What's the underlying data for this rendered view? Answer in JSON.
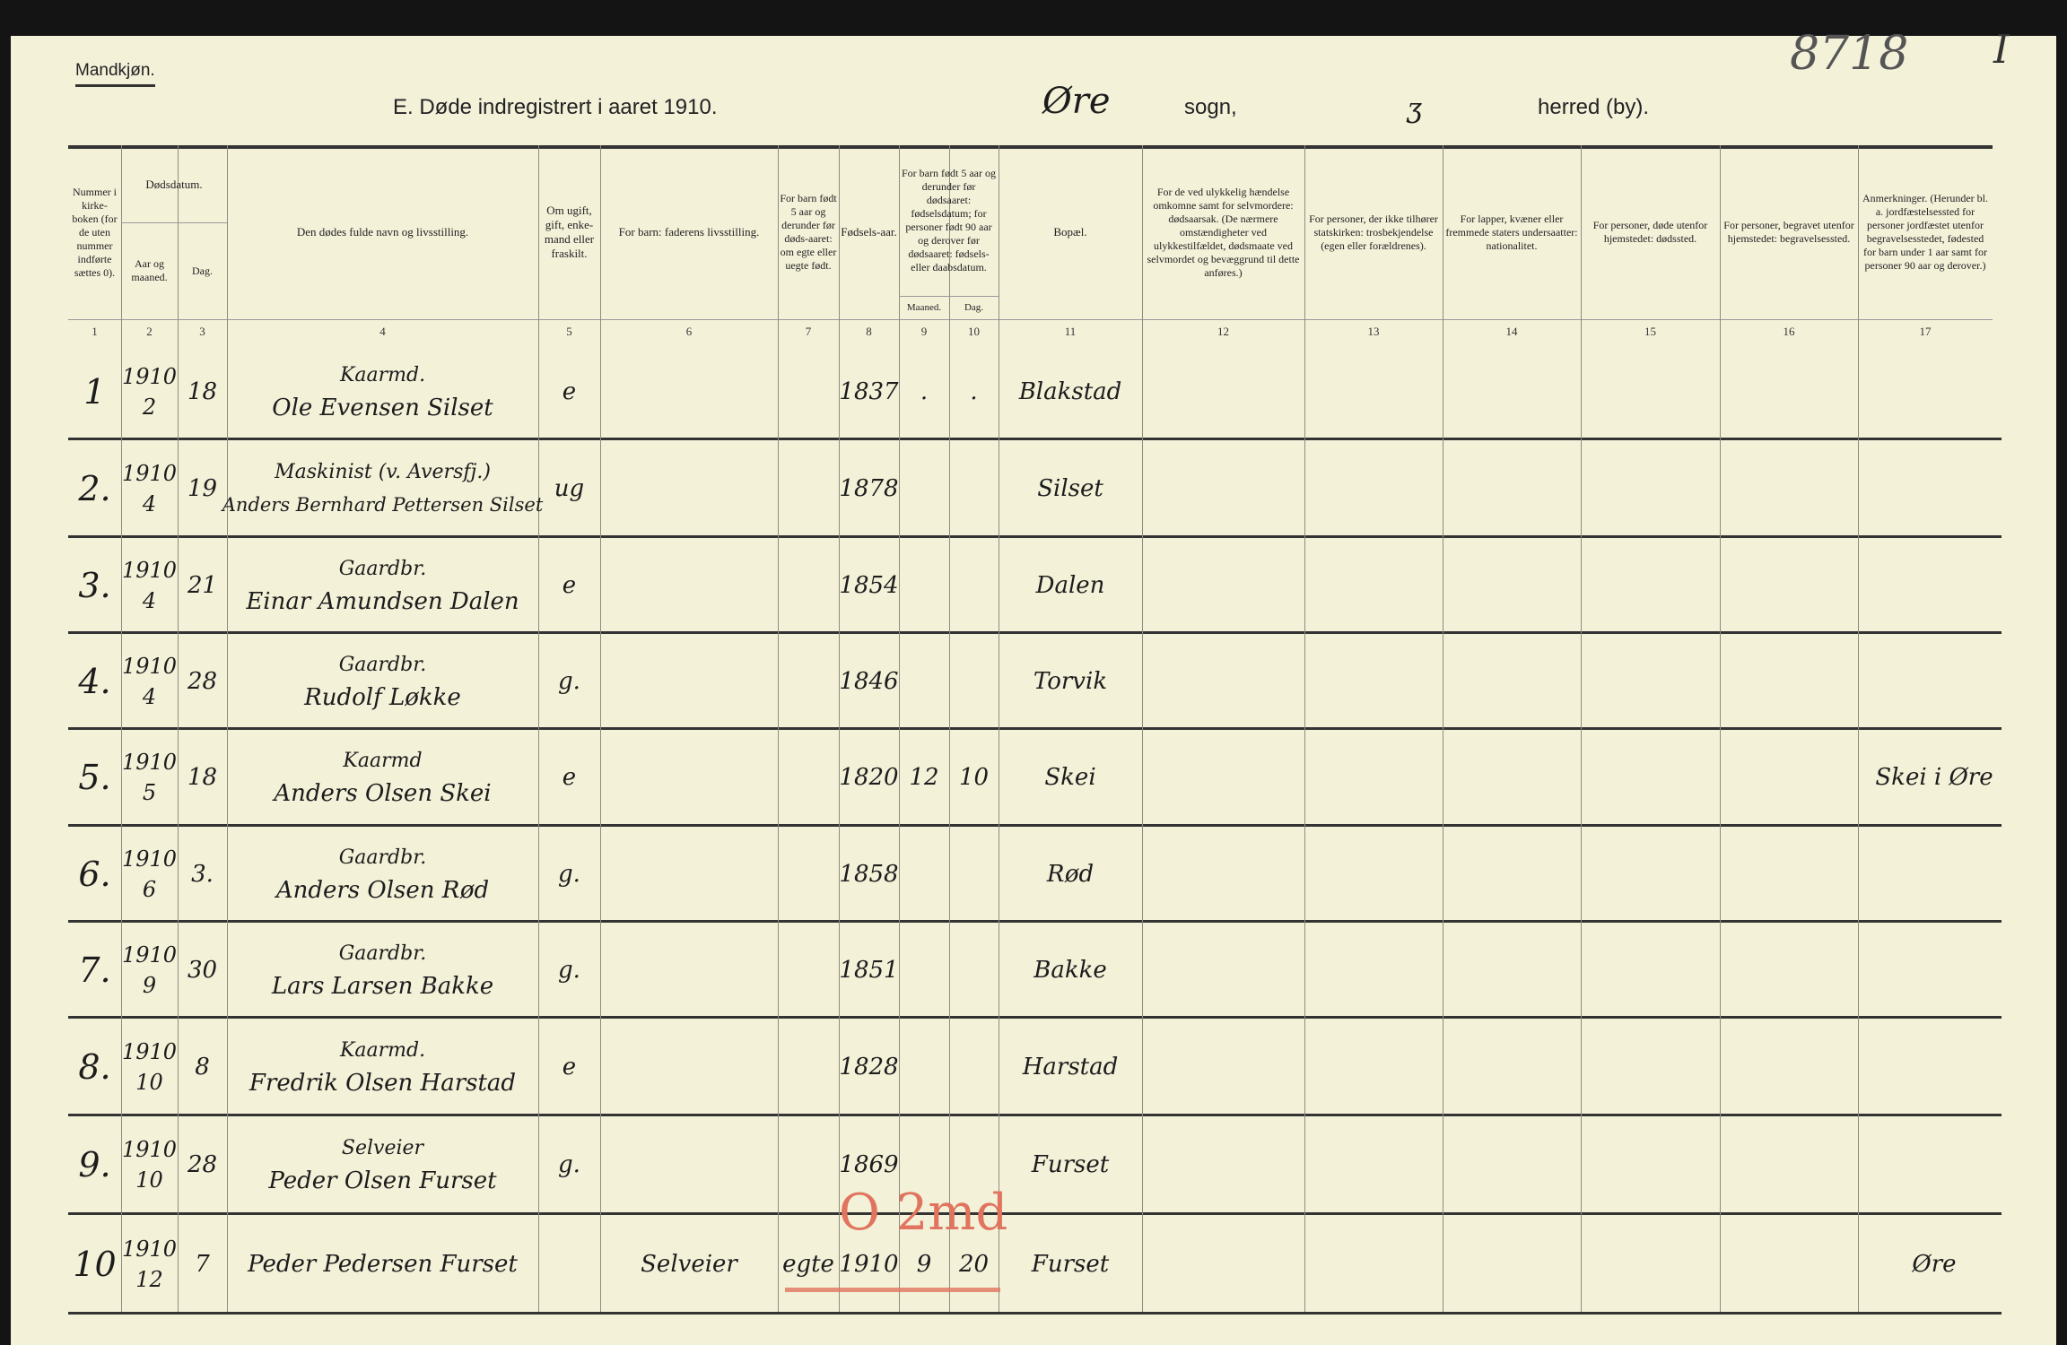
{
  "header": {
    "gender": "Mandkjøn.",
    "title": "E. Døde indregistrert i aaret 1910.",
    "parish_handwritten": "Øre",
    "parish_label": "sogn,",
    "district_handwritten": "ʒ",
    "district_label": "herred (by).",
    "archive_number": "8718",
    "sheet_number": "I"
  },
  "columns": [
    {
      "num": "1",
      "label": "Nummer i kirke-boken (for de uten nummer indførte sættes 0)."
    },
    {
      "num": "2",
      "label": "Aar og maaned."
    },
    {
      "num": "3",
      "label": "Dag."
    },
    {
      "num": "4",
      "label": "Den dødes fulde navn og livsstilling."
    },
    {
      "num": "5",
      "label": "Om ugift, gift, enke-mand eller fraskilt."
    },
    {
      "num": "6",
      "label": "For barn: faderens livsstilling."
    },
    {
      "num": "7",
      "label": "For barn født 5 aar og derunder før døds-aaret: om egte eller uegte født."
    },
    {
      "num": "8",
      "label": "Fødsels-aar."
    },
    {
      "num": "9",
      "label": "Maaned."
    },
    {
      "num": "10",
      "label": "Dag."
    },
    {
      "num": "11",
      "label": "Bopæl."
    },
    {
      "num": "12",
      "label": "For de ved ulykkelig hændelse omkomne samt for selvmordere: dødsaarsak. (De nærmere omstændigheter ved ulykkestilfældet, dødsmaate ved selvmordet og bevæggrund til dette anføres.)"
    },
    {
      "num": "13",
      "label": "For personer, der ikke tilhører statskirken: trosbekjendelse (egen eller forældrenes)."
    },
    {
      "num": "14",
      "label": "For lapper, kvæner eller fremmede staters undersaatter: nationalitet."
    },
    {
      "num": "15",
      "label": "For personer, døde utenfor hjemstedet: dødssted."
    },
    {
      "num": "16",
      "label": "For personer, begravet utenfor hjemstedet: begravelsessted."
    },
    {
      "num": "17",
      "label": "Anmerkninger. (Herunder bl. a. jordfæstelsessted for personer jordfæstet utenfor begravelsesstedet, fødested for barn under 1 aar samt for personer 90 aar og derover.)"
    }
  ],
  "group_headers": {
    "death_date": "Dødsdatum.",
    "birth_date": "For barn født 5 aar og derunder før dødsaaret: fødselsdatum; for personer født 90 aar og derover før dødsaaret: fødsels- eller daabsdatum."
  },
  "rows": [
    {
      "nr": "1",
      "year": "1910",
      "month": "2",
      "day": "18",
      "occupation": "Kaarmd.",
      "name": "Ole Evensen Silset",
      "status": "e",
      "father": "",
      "legit": "",
      "birth_year": "1837",
      "b_month": ".",
      "b_day": ".",
      "residence": "Blakstad",
      "remarks": ""
    },
    {
      "nr": "2.",
      "year": "1910",
      "month": "4",
      "day": "19",
      "occupation": "Maskinist (v. Aversfj.)",
      "name": "Anders Bernhard Pettersen Silset",
      "status": "ug",
      "father": "",
      "legit": "",
      "birth_year": "1878",
      "b_month": "",
      "b_day": "",
      "residence": "Silset",
      "remarks": ""
    },
    {
      "nr": "3.",
      "year": "1910",
      "month": "4",
      "day": "21",
      "occupation": "Gaardbr.",
      "name": "Einar Amundsen Dalen",
      "status": "e",
      "father": "",
      "legit": "",
      "birth_year": "1854",
      "b_month": "",
      "b_day": "",
      "residence": "Dalen",
      "remarks": ""
    },
    {
      "nr": "4.",
      "year": "1910",
      "month": "4",
      "day": "28",
      "occupation": "Gaardbr.",
      "name": "Rudolf Løkke",
      "status": "g.",
      "father": "",
      "legit": "",
      "birth_year": "1846",
      "b_month": "",
      "b_day": "",
      "residence": "Torvik",
      "remarks": ""
    },
    {
      "nr": "5.",
      "year": "1910",
      "month": "5",
      "day": "18",
      "occupation": "Kaarmd",
      "name": "Anders Olsen Skei",
      "status": "e",
      "father": "",
      "legit": "",
      "birth_year": "1820",
      "b_month": "12",
      "b_day": "10",
      "residence": "Skei",
      "remarks": "Skei i Øre"
    },
    {
      "nr": "6.",
      "year": "1910",
      "month": "6",
      "day": "3.",
      "occupation": "Gaardbr.",
      "name": "Anders Olsen Rød",
      "status": "g.",
      "father": "",
      "legit": "",
      "birth_year": "1858",
      "b_month": "",
      "b_day": "",
      "residence": "Rød",
      "remarks": ""
    },
    {
      "nr": "7.",
      "year": "1910",
      "month": "9",
      "day": "30",
      "occupation": "Gaardbr.",
      "name": "Lars Larsen Bakke",
      "status": "g.",
      "father": "",
      "legit": "",
      "birth_year": "1851",
      "b_month": "",
      "b_day": "",
      "residence": "Bakke",
      "remarks": ""
    },
    {
      "nr": "8.",
      "year": "1910",
      "month": "10",
      "day": "8",
      "occupation": "Kaarmd.",
      "name": "Fredrik Olsen Harstad",
      "status": "e",
      "father": "",
      "legit": "",
      "birth_year": "1828",
      "b_month": "",
      "b_day": "",
      "residence": "Harstad",
      "remarks": ""
    },
    {
      "nr": "9.",
      "year": "1910",
      "month": "10",
      "day": "28",
      "occupation": "Selveier",
      "name": "Peder Olsen Furset",
      "status": "g.",
      "father": "",
      "legit": "",
      "birth_year": "1869",
      "b_month": "",
      "b_day": "",
      "residence": "Furset",
      "remarks": ""
    },
    {
      "nr": "10",
      "year": "1910",
      "month": "12",
      "day": "7",
      "occupation": "",
      "name": "Peder Pedersen Furset",
      "status": "",
      "father": "Selveier",
      "legit": "egte",
      "birth_year": "1910",
      "b_month": "9",
      "b_day": "20",
      "residence": "Furset",
      "remarks": "Øre"
    }
  ],
  "red_annotation": {
    "text": "O 2md",
    "color": "#e0745e"
  }
}
